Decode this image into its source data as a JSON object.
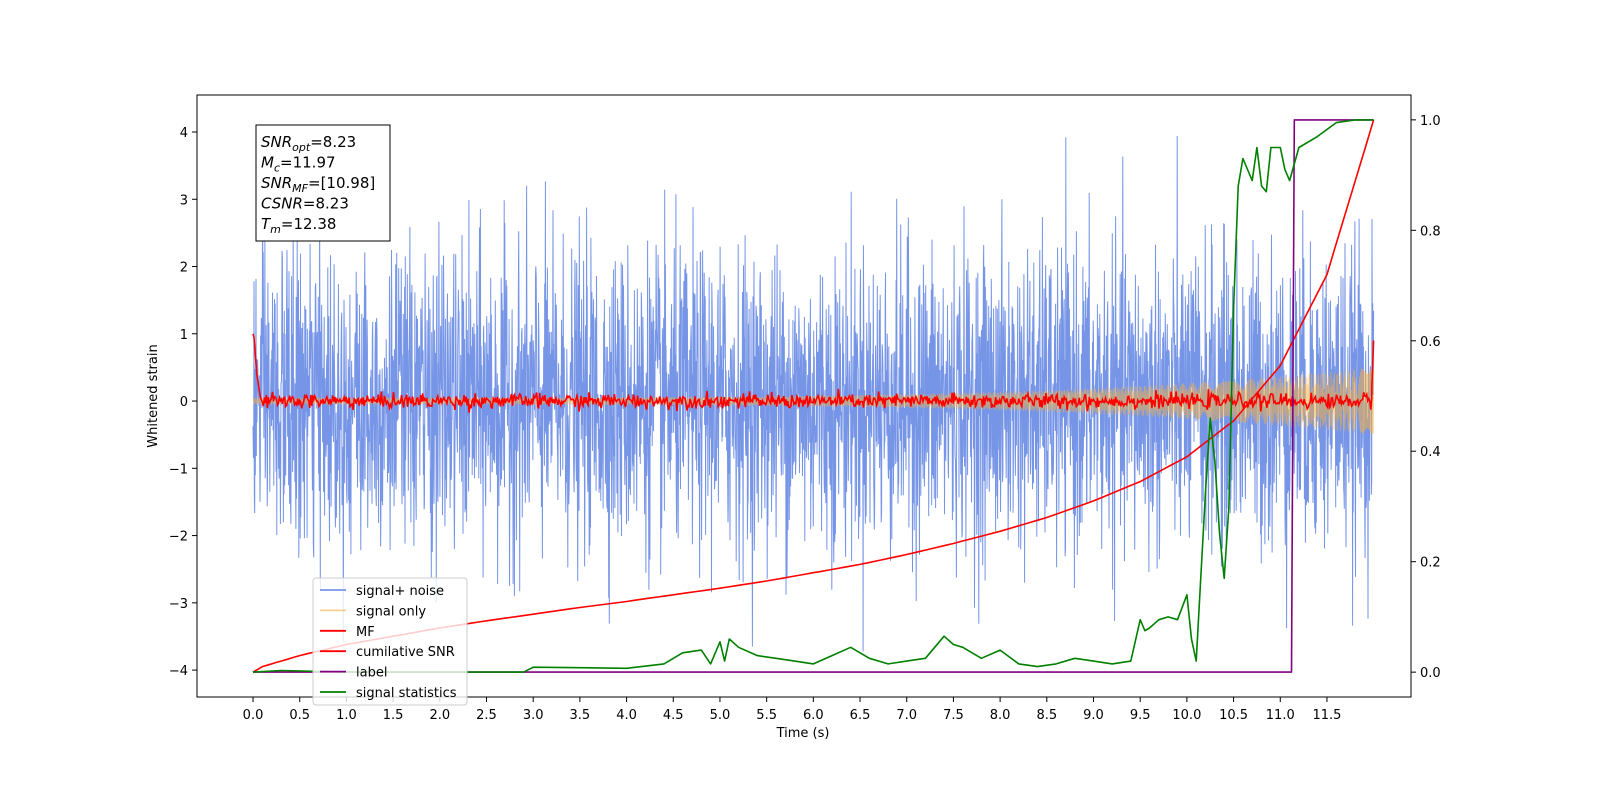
{
  "chart_data": {
    "type": "line",
    "xlabel": "Time (s)",
    "ylabel": "Whitened strain",
    "xlim": [
      -0.6,
      12.4
    ],
    "ylim": [
      -4.4,
      4.55
    ],
    "y2lim": [
      -0.045,
      1.045
    ],
    "x_ticks": [
      "0.0",
      "0.5",
      "1.0",
      "1.5",
      "2.0",
      "2.5",
      "3.0",
      "3.5",
      "4.0",
      "4.5",
      "5.0",
      "5.5",
      "6.0",
      "6.5",
      "7.0",
      "7.5",
      "8.0",
      "8.5",
      "9.0",
      "9.5",
      "10.0",
      "10.5",
      "11.0",
      "11.5"
    ],
    "y_ticks": [
      "−4",
      "−3",
      "−2",
      "−1",
      "0",
      "1",
      "2",
      "3",
      "4"
    ],
    "y2_ticks": [
      "0.0",
      "0.2",
      "0.4",
      "0.6",
      "0.8",
      "1.0"
    ],
    "grid": false,
    "legend_placement": "lower-left",
    "annotation": {
      "lines": [
        {
          "base": "SNR",
          "sub": "opt",
          "value": "=8.23"
        },
        {
          "base": "M",
          "sub": "c",
          "value": "=11.97"
        },
        {
          "base": "SNR",
          "sub": "MF",
          "value": "=[10.98]"
        },
        {
          "base": "CSNR",
          "sub": "",
          "value": "=8.23"
        },
        {
          "base": "T",
          "sub": "m",
          "value": "=12.38"
        }
      ]
    },
    "series": [
      {
        "name": "signal+ noise",
        "axis": "left",
        "color": "#6f8fe6",
        "kind": "noise",
        "x_range": [
          0,
          12.0
        ],
        "sigma": 1.1,
        "y_extent": [
          -3.9,
          4.2
        ]
      },
      {
        "name": "signal only",
        "axis": "left",
        "color": "#f5b041",
        "kind": "chirp",
        "x_range": [
          0,
          12.0
        ],
        "amplitude_start": 0.05,
        "amplitude_end": 0.5
      },
      {
        "name": "MF",
        "axis": "left",
        "color": "#ff0000",
        "kind": "mf",
        "x_range": [
          0,
          12.0
        ],
        "start_value": 1.0,
        "end_value": 0.9,
        "baseline": 0.0
      },
      {
        "name": "cumilative SNR",
        "axis": "right",
        "color": "#ff0000",
        "x": [
          0,
          0.1,
          0.5,
          1,
          1.5,
          2,
          2.5,
          3,
          3.5,
          4,
          4.5,
          5,
          5.5,
          6,
          6.5,
          7,
          7.5,
          8,
          8.5,
          9,
          9.5,
          10,
          10.5,
          11,
          11.5,
          12.0
        ],
        "y": [
          0.0,
          0.01,
          0.03,
          0.05,
          0.065,
          0.08,
          0.093,
          0.105,
          0.117,
          0.128,
          0.14,
          0.152,
          0.165,
          0.18,
          0.195,
          0.213,
          0.233,
          0.255,
          0.28,
          0.31,
          0.345,
          0.39,
          0.455,
          0.555,
          0.72,
          1.0
        ]
      },
      {
        "name": "label",
        "axis": "right",
        "color": "#800080",
        "x": [
          0,
          11.12,
          11.12,
          11.15,
          12.0
        ],
        "y": [
          0,
          0,
          0,
          1,
          1
        ]
      },
      {
        "name": "signal statistics",
        "axis": "right",
        "color": "#008000",
        "x": [
          0,
          0.3,
          1,
          2,
          2.9,
          3.0,
          3.5,
          4,
          4.4,
          4.6,
          4.8,
          4.9,
          5.0,
          5.05,
          5.1,
          5.2,
          5.4,
          5.6,
          5.8,
          6.0,
          6.2,
          6.4,
          6.6,
          6.8,
          7.0,
          7.2,
          7.4,
          7.5,
          7.6,
          7.8,
          8.0,
          8.2,
          8.4,
          8.6,
          8.8,
          9.0,
          9.2,
          9.4,
          9.5,
          9.55,
          9.6,
          9.7,
          9.8,
          9.9,
          10.0,
          10.05,
          10.1,
          10.2,
          10.25,
          10.3,
          10.35,
          10.4,
          10.45,
          10.5,
          10.55,
          10.6,
          10.7,
          10.75,
          10.8,
          10.85,
          10.9,
          11.0,
          11.05,
          11.1,
          11.2,
          11.4,
          11.6,
          11.8,
          12.0
        ],
        "y": [
          0.0,
          0.003,
          0.0,
          0.0,
          0.0,
          0.009,
          0.008,
          0.007,
          0.015,
          0.035,
          0.04,
          0.015,
          0.055,
          0.02,
          0.06,
          0.045,
          0.03,
          0.025,
          0.02,
          0.015,
          0.03,
          0.045,
          0.025,
          0.015,
          0.02,
          0.025,
          0.065,
          0.05,
          0.045,
          0.025,
          0.04,
          0.015,
          0.01,
          0.015,
          0.025,
          0.02,
          0.015,
          0.02,
          0.095,
          0.075,
          0.08,
          0.095,
          0.1,
          0.095,
          0.14,
          0.06,
          0.02,
          0.33,
          0.46,
          0.38,
          0.25,
          0.17,
          0.3,
          0.66,
          0.88,
          0.93,
          0.89,
          0.95,
          0.88,
          0.87,
          0.95,
          0.95,
          0.91,
          0.89,
          0.95,
          0.97,
          0.995,
          1.0,
          1.0
        ]
      }
    ]
  }
}
